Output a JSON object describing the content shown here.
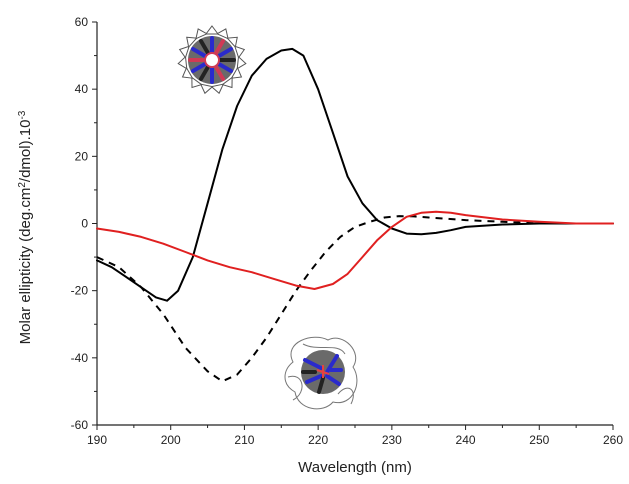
{
  "chart_data": {
    "type": "line",
    "xlabel": "Wavelength (nm)",
    "ylabel": {
      "prefix": "Molar ellipticity (deg.cm",
      "sup1": "2",
      "middle": "/dmol).10",
      "sup2": "-3"
    },
    "xlim": [
      190,
      260
    ],
    "ylim": [
      -60,
      60
    ],
    "xticks": [
      "190",
      "200",
      "210",
      "220",
      "230",
      "240",
      "250",
      "260"
    ],
    "yticks": [
      "60",
      "40",
      "20",
      "0",
      "-20",
      "-40",
      "-60"
    ],
    "grid": false,
    "legend": "none",
    "series": [
      {
        "color": "#000000",
        "style": "solid",
        "x": [
          190,
          192,
          194,
          196,
          198,
          199.5,
          201,
          203,
          205,
          207,
          209,
          211,
          213,
          215,
          216.5,
          218,
          220,
          222,
          224,
          226,
          228,
          230,
          232,
          234,
          236,
          238,
          240,
          245,
          250,
          255,
          260
        ],
        "y": [
          -11,
          -13,
          -16,
          -19,
          -22,
          -23,
          -20,
          -10,
          6,
          22,
          35,
          44,
          49,
          51.5,
          52,
          50,
          40,
          27,
          14,
          6,
          1,
          -1.5,
          -3,
          -3.2,
          -2.8,
          -2,
          -1,
          -0.3,
          0,
          0,
          0
        ]
      },
      {
        "color": "#000000",
        "style": "dashed",
        "x": [
          190,
          193,
          196,
          199,
          202,
          205,
          207,
          209,
          211,
          213,
          215,
          217,
          219,
          221,
          223,
          225,
          227,
          229,
          231,
          233,
          235,
          240,
          245,
          250,
          255,
          260
        ],
        "y": [
          -10,
          -13,
          -19,
          -27,
          -37,
          -44,
          -47,
          -45,
          -40,
          -34,
          -27,
          -20,
          -14,
          -8.5,
          -4,
          -1,
          0.5,
          1.8,
          2.2,
          2.1,
          1.8,
          1,
          0.5,
          0,
          0,
          0
        ]
      },
      {
        "color": "#e02020",
        "style": "solid",
        "x": [
          190,
          193,
          196,
          199,
          202,
          205,
          208,
          211,
          214,
          217,
          219.5,
          222,
          224,
          226,
          228,
          230,
          232,
          234,
          236,
          238,
          240,
          245,
          250,
          255,
          260
        ],
        "y": [
          -1.5,
          -2.5,
          -4,
          -6,
          -8.5,
          -11,
          -13,
          -14.5,
          -16.5,
          -18.5,
          -19.5,
          -18,
          -15,
          -10,
          -5,
          -1,
          2,
          3.2,
          3.5,
          3.2,
          2.5,
          1.2,
          0.5,
          0,
          0
        ]
      }
    ]
  }
}
